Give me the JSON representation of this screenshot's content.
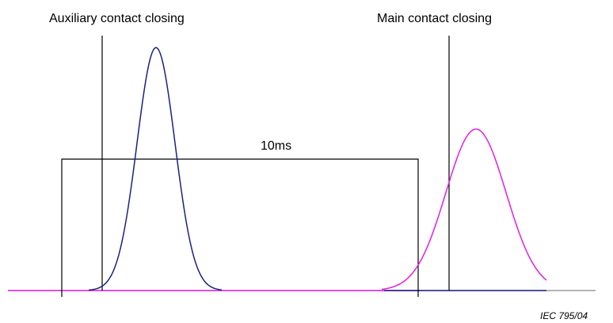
{
  "labels": {
    "auxiliary": "Auxiliary contact closing",
    "main": "Main contact closing",
    "interval": "10ms"
  },
  "footer": "IEC  795/04"
}
